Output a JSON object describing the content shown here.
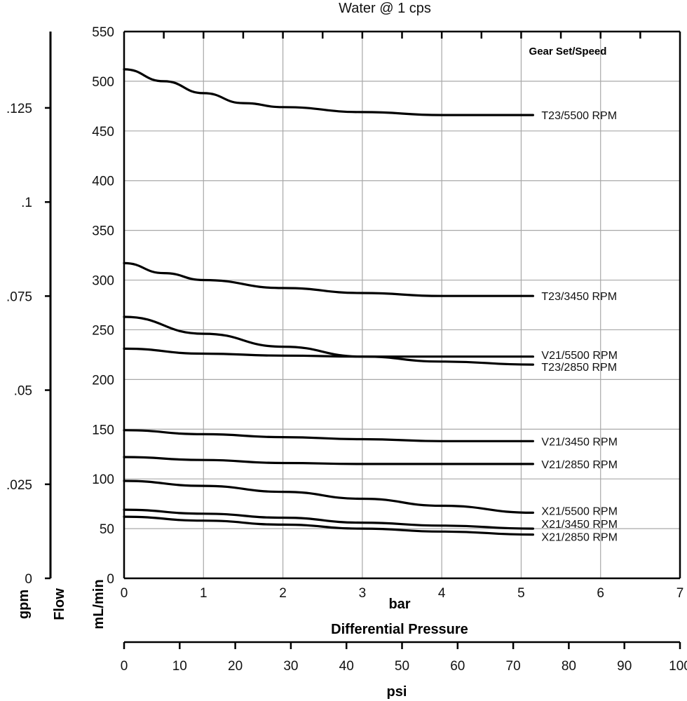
{
  "chart_data": {
    "type": "line",
    "title": "Water @ 1 cps",
    "legend_title": "Gear Set/Speed",
    "x_primary": {
      "label": "bar",
      "range": [
        0,
        7
      ],
      "ticks": [
        "0",
        "1",
        "2",
        "3",
        "4",
        "5",
        "6",
        "7"
      ]
    },
    "x_secondary": {
      "label": "psi",
      "range": [
        0,
        100
      ],
      "ticks": [
        "0",
        "10",
        "20",
        "30",
        "40",
        "50",
        "60",
        "70",
        "80",
        "90",
        "100"
      ]
    },
    "x_title": "Differential Pressure",
    "y_primary": {
      "label": "mL/min",
      "range": [
        0,
        550
      ],
      "ticks": [
        "0",
        "50",
        "100",
        "150",
        "200",
        "250",
        "300",
        "350",
        "400",
        "450",
        "500",
        "550"
      ]
    },
    "y_secondary": {
      "label": "gpm",
      "ticks": [
        {
          "label": "0",
          "ml": 0
        },
        {
          "label": ".025",
          "ml": 94.6
        },
        {
          "label": ".05",
          "ml": 189.3
        },
        {
          "label": ".075",
          "ml": 283.9
        },
        {
          "label": ".1",
          "ml": 378.5
        },
        {
          "label": ".125",
          "ml": 473.2
        }
      ]
    },
    "flow_label": "Flow",
    "grid": true,
    "series": [
      {
        "name": "T23/5500 RPM",
        "x": [
          0,
          0.5,
          1,
          1.5,
          2,
          3,
          4,
          5.15
        ],
        "y": [
          512,
          500,
          488,
          478,
          474,
          469,
          466,
          466
        ]
      },
      {
        "name": "T23/3450 RPM",
        "x": [
          0,
          0.5,
          1,
          2,
          3,
          4,
          5.15
        ],
        "y": [
          317,
          307,
          300,
          292,
          287,
          284,
          284
        ]
      },
      {
        "name": "V21/5500 RPM",
        "x": [
          0,
          1,
          2,
          3,
          4,
          5.15
        ],
        "y": [
          231,
          226,
          224,
          223,
          223,
          223
        ]
      },
      {
        "name": "T23/2850 RPM",
        "x": [
          0,
          1,
          2,
          3,
          4,
          5.15
        ],
        "y": [
          263,
          246,
          233,
          223,
          218,
          215
        ]
      },
      {
        "name": "V21/3450 RPM",
        "x": [
          0,
          1,
          2,
          3,
          4,
          5.15
        ],
        "y": [
          149,
          145,
          142,
          140,
          138,
          138
        ]
      },
      {
        "name": "V21/2850 RPM",
        "x": [
          0,
          1,
          2,
          3,
          4,
          5.15
        ],
        "y": [
          122,
          119,
          116,
          115,
          115,
          115
        ]
      },
      {
        "name": "X21/5500 RPM",
        "x": [
          0,
          1,
          2,
          3,
          4,
          5.15
        ],
        "y": [
          98,
          93,
          87,
          80,
          73,
          66
        ]
      },
      {
        "name": "X21/3450 RPM",
        "x": [
          0,
          1,
          2,
          3,
          4,
          5.15
        ],
        "y": [
          69,
          65,
          61,
          56,
          53,
          50
        ]
      },
      {
        "name": "X21/2850 RPM",
        "x": [
          0,
          1,
          2,
          3,
          4,
          5.15
        ],
        "y": [
          62,
          58,
          54,
          50,
          47,
          44
        ]
      }
    ],
    "label_y_positions": [
      466,
      284,
      225,
      213,
      138,
      115,
      68,
      55,
      42
    ]
  }
}
